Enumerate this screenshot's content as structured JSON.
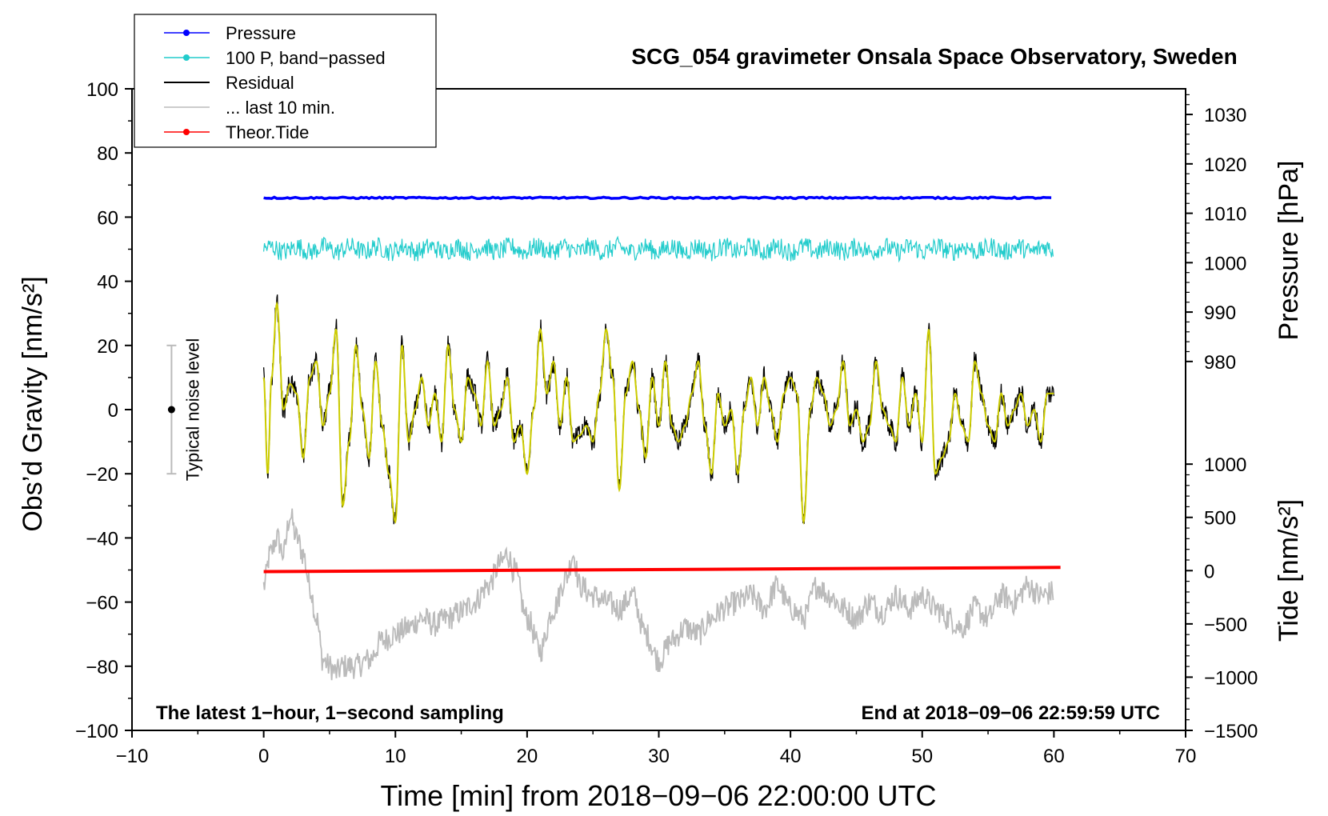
{
  "chart_data": {
    "type": "line",
    "title": "SCG_054 gravimeter Onsala Space Observatory, Sweden",
    "xlabel": "Time [min] from 2018−09−06 22:00:00 UTC",
    "ylabel_left": "Obs’d Gravity [nm/s²]",
    "ylabel_right_top": "Pressure [hPa]",
    "ylabel_right_bottom": "Tide [nm/s²]",
    "xlim": [
      -10,
      70
    ],
    "ylim_left": [
      -100,
      100
    ],
    "x_ticks": [
      "−10",
      "0",
      "10",
      "20",
      "30",
      "40",
      "50",
      "60",
      "70"
    ],
    "x_tick_values": [
      -10,
      0,
      10,
      20,
      30,
      40,
      50,
      60,
      70
    ],
    "y_ticks_left": [
      "100",
      "80",
      "60",
      "40",
      "20",
      "0",
      "−20",
      "−40",
      "−60",
      "−80",
      "−100"
    ],
    "y_tick_values_left": [
      100,
      80,
      60,
      40,
      20,
      0,
      -20,
      -40,
      -60,
      -80,
      -100
    ],
    "pressure_axis": {
      "ticks": [
        "1030",
        "1020",
        "1010",
        "1000",
        "990",
        "980"
      ],
      "tick_values": [
        1030,
        1020,
        1010,
        1000,
        990,
        980
      ],
      "gravity_equivalent": {
        "hPa": [
          1030,
          980
        ],
        "gravity": [
          92,
          15
        ]
      }
    },
    "tide_axis": {
      "ticks": [
        "1000",
        "500",
        "0",
        "−500",
        "−1000",
        "−1500"
      ],
      "tick_values": [
        1000,
        500,
        0,
        -500,
        -1000,
        -1500
      ],
      "gravity_equivalent": {
        "tide": [
          1000,
          -1500
        ],
        "gravity": [
          -17,
          -100
        ]
      }
    },
    "legend": [
      {
        "label": "Pressure",
        "color": "#0000ff",
        "marker": true
      },
      {
        "label": "100 P, band−passed",
        "color": "#22cccc",
        "marker": true
      },
      {
        "label": "Residual",
        "color": "#000000",
        "marker": false
      },
      {
        "label": "... last 10 min.",
        "color": "#bbbbbb",
        "marker": false
      },
      {
        "label": "Theor.Tide",
        "color": "#ff0000",
        "marker": true
      }
    ],
    "legend_position": "top-left",
    "noise_bar": {
      "label": "Typical noise level",
      "x": -7,
      "center": 0,
      "low": -20,
      "high": 20
    },
    "annotation_left": "The latest 1−hour, 1−second sampling",
    "annotation_right": "End at 2018−09−06 22:59:59 UTC",
    "series": [
      {
        "name": "Pressure",
        "color": "#0000ff",
        "x_range": [
          0,
          60
        ],
        "gravity_level": 66,
        "hPa": 1013.3
      },
      {
        "name": "100 P, band-passed",
        "color": "#22cccc",
        "x_range": [
          0,
          60
        ],
        "gravity_center": 50,
        "noise_amplitude": 3
      },
      {
        "name": "Residual",
        "color": "#000000",
        "x_range": [
          0,
          60
        ],
        "keypoints": [
          [
            0,
            10
          ],
          [
            0.3,
            -20
          ],
          [
            0.6,
            10
          ],
          [
            1,
            33
          ],
          [
            1.5,
            0
          ],
          [
            2,
            8
          ],
          [
            2.5,
            5
          ],
          [
            3,
            -15
          ],
          [
            3.5,
            10
          ],
          [
            4,
            15
          ],
          [
            4.5,
            -5
          ],
          [
            5,
            5
          ],
          [
            5.5,
            25
          ],
          [
            6,
            -30
          ],
          [
            6.5,
            -10
          ],
          [
            7,
            20
          ],
          [
            7.5,
            0
          ],
          [
            8,
            -15
          ],
          [
            8.5,
            15
          ],
          [
            9,
            -5
          ],
          [
            9.5,
            -20
          ],
          [
            10,
            -35
          ],
          [
            10.5,
            20
          ],
          [
            11,
            -10
          ],
          [
            11.5,
            0
          ],
          [
            12,
            10
          ],
          [
            12.5,
            -5
          ],
          [
            13,
            5
          ],
          [
            13.5,
            -10
          ],
          [
            14,
            20
          ],
          [
            14.5,
            0
          ],
          [
            15,
            -10
          ],
          [
            15.5,
            10
          ],
          [
            16,
            5
          ],
          [
            16.5,
            -5
          ],
          [
            17,
            15
          ],
          [
            17.5,
            -5
          ],
          [
            18,
            0
          ],
          [
            18.5,
            10
          ],
          [
            19,
            -10
          ],
          [
            19.5,
            -5
          ],
          [
            20,
            -20
          ],
          [
            20.5,
            0
          ],
          [
            21,
            25
          ],
          [
            21.5,
            5
          ],
          [
            22,
            15
          ],
          [
            22.5,
            -5
          ],
          [
            23,
            10
          ],
          [
            23.5,
            -10
          ],
          [
            24,
            -8
          ],
          [
            24.5,
            -5
          ],
          [
            25,
            -10
          ],
          [
            25.5,
            5
          ],
          [
            26,
            25
          ],
          [
            26.5,
            10
          ],
          [
            27,
            -25
          ],
          [
            27.5,
            5
          ],
          [
            28,
            15
          ],
          [
            28.5,
            0
          ],
          [
            29,
            -15
          ],
          [
            29.5,
            10
          ],
          [
            30,
            -5
          ],
          [
            30.5,
            15
          ],
          [
            31,
            -5
          ],
          [
            31.5,
            -10
          ],
          [
            32,
            -5
          ],
          [
            32.5,
            5
          ],
          [
            33,
            15
          ],
          [
            33.5,
            -5
          ],
          [
            34,
            -20
          ],
          [
            34.5,
            5
          ],
          [
            35,
            -5
          ],
          [
            35.5,
            0
          ],
          [
            36,
            -20
          ],
          [
            36.5,
            0
          ],
          [
            37,
            10
          ],
          [
            37.5,
            -5
          ],
          [
            38,
            10
          ],
          [
            38.5,
            0
          ],
          [
            39,
            -10
          ],
          [
            39.5,
            5
          ],
          [
            40,
            10
          ],
          [
            40.5,
            5
          ],
          [
            41,
            -35
          ],
          [
            41.5,
            0
          ],
          [
            42,
            10
          ],
          [
            42.5,
            5
          ],
          [
            43,
            -5
          ],
          [
            43.5,
            0
          ],
          [
            44,
            15
          ],
          [
            44.5,
            -5
          ],
          [
            45,
            0
          ],
          [
            45.5,
            -10
          ],
          [
            46,
            -5
          ],
          [
            46.5,
            15
          ],
          [
            47,
            0
          ],
          [
            47.5,
            -5
          ],
          [
            48,
            -10
          ],
          [
            48.5,
            10
          ],
          [
            49,
            -5
          ],
          [
            49.5,
            5
          ],
          [
            50,
            -10
          ],
          [
            50.5,
            25
          ],
          [
            51,
            -20
          ],
          [
            51.5,
            -15
          ],
          [
            52,
            -10
          ],
          [
            52.5,
            5
          ],
          [
            53,
            -5
          ],
          [
            53.5,
            -10
          ],
          [
            54,
            15
          ],
          [
            54.5,
            5
          ],
          [
            55,
            -5
          ],
          [
            55.5,
            -10
          ],
          [
            56,
            5
          ],
          [
            56.5,
            -5
          ],
          [
            57,
            0
          ],
          [
            57.5,
            5
          ],
          [
            58,
            -5
          ],
          [
            58.5,
            0
          ],
          [
            59,
            -10
          ],
          [
            59.5,
            5
          ],
          [
            60,
            5
          ]
        ]
      },
      {
        "name": "... last 10 min.",
        "color": "#bbbbbb",
        "x_range": [
          0,
          60
        ],
        "keypoints": [
          [
            0,
            -55
          ],
          [
            0.5,
            -45
          ],
          [
            1,
            -40
          ],
          [
            1.5,
            -45
          ],
          [
            2,
            -33
          ],
          [
            2.5,
            -40
          ],
          [
            3,
            -45
          ],
          [
            3.5,
            -55
          ],
          [
            4,
            -65
          ],
          [
            4.5,
            -78
          ],
          [
            5,
            -80
          ],
          [
            5.5,
            -82
          ],
          [
            6,
            -80
          ],
          [
            7,
            -80
          ],
          [
            8,
            -78
          ],
          [
            9,
            -72
          ],
          [
            10,
            -70
          ],
          [
            11,
            -68
          ],
          [
            12,
            -65
          ],
          [
            13,
            -67
          ],
          [
            14,
            -65
          ],
          [
            15,
            -63
          ],
          [
            16,
            -60
          ],
          [
            17,
            -55
          ],
          [
            18,
            -48
          ],
          [
            18.5,
            -45
          ],
          [
            19,
            -50
          ],
          [
            20,
            -65
          ],
          [
            21,
            -75
          ],
          [
            22,
            -62
          ],
          [
            23,
            -52
          ],
          [
            23.5,
            -45
          ],
          [
            24,
            -55
          ],
          [
            25,
            -58
          ],
          [
            26,
            -60
          ],
          [
            27,
            -62
          ],
          [
            28,
            -58
          ],
          [
            29,
            -70
          ],
          [
            30,
            -78
          ],
          [
            31,
            -72
          ],
          [
            32,
            -68
          ],
          [
            33,
            -70
          ],
          [
            34,
            -65
          ],
          [
            35,
            -62
          ],
          [
            36,
            -60
          ],
          [
            37,
            -58
          ],
          [
            38,
            -62
          ],
          [
            39,
            -55
          ],
          [
            40,
            -62
          ],
          [
            41,
            -65
          ],
          [
            42,
            -55
          ],
          [
            43,
            -58
          ],
          [
            44,
            -62
          ],
          [
            45,
            -65
          ],
          [
            46,
            -60
          ],
          [
            47,
            -63
          ],
          [
            48,
            -58
          ],
          [
            49,
            -62
          ],
          [
            50,
            -58
          ],
          [
            51,
            -62
          ],
          [
            52,
            -65
          ],
          [
            53,
            -68
          ],
          [
            54,
            -62
          ],
          [
            55,
            -65
          ],
          [
            56,
            -58
          ],
          [
            57,
            -60
          ],
          [
            58,
            -55
          ],
          [
            59,
            -58
          ],
          [
            60,
            -57
          ]
        ]
      },
      {
        "name": "Theor.Tide",
        "color": "#ff0000",
        "x_range": [
          0,
          60.5
        ],
        "gravity_start": -50.5,
        "gravity_end": -49.2
      }
    ]
  }
}
